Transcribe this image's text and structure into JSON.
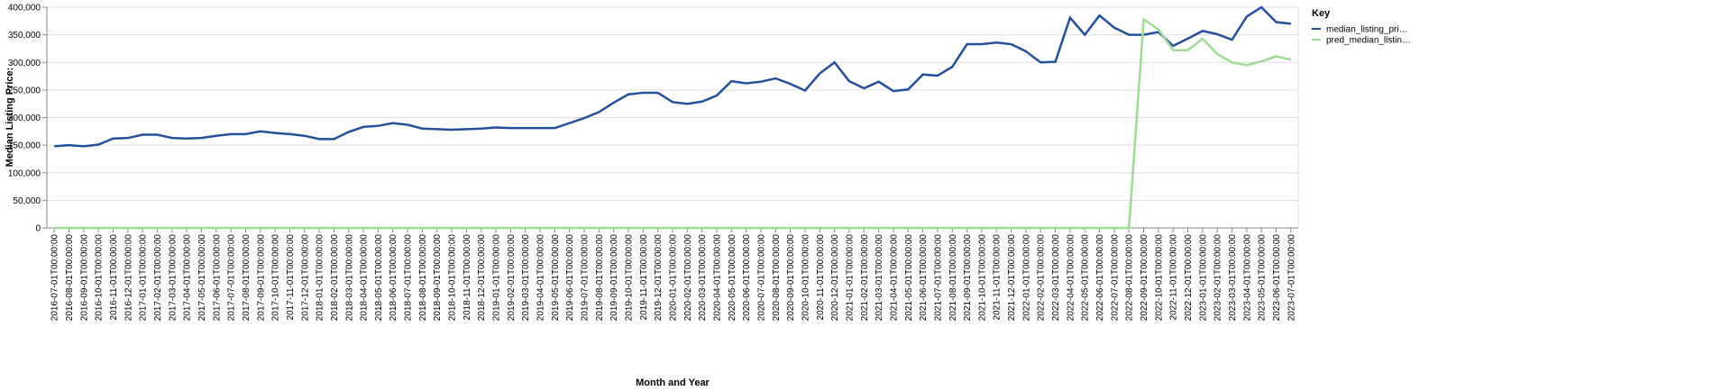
{
  "chart_data": {
    "type": "line",
    "y_label": "Median Listing Price:",
    "x_label": "Month and Year",
    "legend_title": "Key",
    "legend_position": "right",
    "grid": true,
    "categories": [
      "2016-07-01T00:00:00",
      "2016-08-01T00:00:00",
      "2016-09-01T00:00:00",
      "2016-10-01T00:00:00",
      "2016-11-01T00:00:00",
      "2016-12-01T00:00:00",
      "2017-01-01T00:00:00",
      "2017-02-01T00:00:00",
      "2017-03-01T00:00:00",
      "2017-04-01T00:00:00",
      "2017-05-01T00:00:00",
      "2017-06-01T00:00:00",
      "2017-07-01T00:00:00",
      "2017-08-01T00:00:00",
      "2017-09-01T00:00:00",
      "2017-10-01T00:00:00",
      "2017-11-01T00:00:00",
      "2017-12-01T00:00:00",
      "2018-01-01T00:00:00",
      "2018-02-01T00:00:00",
      "2018-03-01T00:00:00",
      "2018-04-01T00:00:00",
      "2018-05-01T00:00:00",
      "2018-06-01T00:00:00",
      "2018-07-01T00:00:00",
      "2018-08-01T00:00:00",
      "2018-09-01T00:00:00",
      "2018-10-01T00:00:00",
      "2018-11-01T00:00:00",
      "2018-12-01T00:00:00",
      "2019-01-01T00:00:00",
      "2019-02-01T00:00:00",
      "2019-03-01T00:00:00",
      "2019-04-01T00:00:00",
      "2019-05-01T00:00:00",
      "2019-06-01T00:00:00",
      "2019-07-01T00:00:00",
      "2019-08-01T00:00:00",
      "2019-09-01T00:00:00",
      "2019-10-01T00:00:00",
      "2019-11-01T00:00:00",
      "2019-12-01T00:00:00",
      "2020-01-01T00:00:00",
      "2020-02-01T00:00:00",
      "2020-03-01T00:00:00",
      "2020-04-01T00:00:00",
      "2020-05-01T00:00:00",
      "2020-06-01T00:00:00",
      "2020-07-01T00:00:00",
      "2020-08-01T00:00:00",
      "2020-09-01T00:00:00",
      "2020-10-01T00:00:00",
      "2020-11-01T00:00:00",
      "2020-12-01T00:00:00",
      "2021-01-01T00:00:00",
      "2021-02-01T00:00:00",
      "2021-03-01T00:00:00",
      "2021-04-01T00:00:00",
      "2021-05-01T00:00:00",
      "2021-06-01T00:00:00",
      "2021-07-01T00:00:00",
      "2021-08-01T00:00:00",
      "2021-09-01T00:00:00",
      "2021-10-01T00:00:00",
      "2021-11-01T00:00:00",
      "2021-12-01T00:00:00",
      "2022-01-01T00:00:00",
      "2022-02-01T00:00:00",
      "2022-03-01T00:00:00",
      "2022-04-01T00:00:00",
      "2022-05-01T00:00:00",
      "2022-06-01T00:00:00",
      "2022-07-01T00:00:00",
      "2022-08-01T00:00:00",
      "2022-09-01T00:00:00",
      "2022-10-01T00:00:00",
      "2022-11-01T00:00:00",
      "2022-12-01T00:00:00",
      "2023-01-01T00:00:00",
      "2023-02-01T00:00:00",
      "2023-03-01T00:00:00",
      "2023-04-01T00:00:00",
      "2023-05-01T00:00:00",
      "2023-06-01T00:00:00",
      "2023-07-01T00:00:00"
    ],
    "series": [
      {
        "name": "median_listing_pri…",
        "color": "#24509a",
        "values": [
          148000,
          150000,
          148000,
          151000,
          162000,
          163000,
          169000,
          169000,
          163000,
          162000,
          163000,
          167000,
          170000,
          170000,
          175000,
          172000,
          170000,
          167000,
          161000,
          161000,
          174000,
          183000,
          185000,
          190000,
          187000,
          180000,
          179000,
          178000,
          179000,
          180000,
          182000,
          181000,
          181000,
          181000,
          181000,
          190000,
          199000,
          210000,
          227000,
          242000,
          245000,
          245000,
          228000,
          225000,
          229000,
          240000,
          266000,
          262000,
          265000,
          271000,
          261000,
          249000,
          280000,
          300000,
          266000,
          253000,
          265000,
          248000,
          251000,
          278000,
          276000,
          292000,
          333000,
          333000,
          336000,
          333000,
          320000,
          300000,
          301000,
          381000,
          350000,
          385000,
          363000,
          350000,
          350000,
          355000,
          330000,
          343000,
          357000,
          351000,
          341000,
          383000,
          400000,
          373000,
          370000
        ]
      },
      {
        "name": "pred_median_listin…",
        "color": "#9edc94",
        "values": [
          0,
          0,
          0,
          0,
          0,
          0,
          0,
          0,
          0,
          0,
          0,
          0,
          0,
          0,
          0,
          0,
          0,
          0,
          0,
          0,
          0,
          0,
          0,
          0,
          0,
          0,
          0,
          0,
          0,
          0,
          0,
          0,
          0,
          0,
          0,
          0,
          0,
          0,
          0,
          0,
          0,
          0,
          0,
          0,
          0,
          0,
          0,
          0,
          0,
          0,
          0,
          0,
          0,
          0,
          0,
          0,
          0,
          0,
          0,
          0,
          0,
          0,
          0,
          0,
          0,
          0,
          0,
          0,
          0,
          0,
          0,
          0,
          0,
          0,
          378000,
          360000,
          322000,
          322000,
          343000,
          315000,
          300000,
          295000,
          302000,
          311000,
          305000
        ]
      }
    ],
    "ylim": [
      0,
      400000
    ],
    "yticks": [
      0,
      {
        "value": 50000,
        "label": "50,000"
      },
      {
        "value": 100000,
        "label": "100,000"
      },
      {
        "value": 150000,
        "label": "150,000"
      },
      {
        "value": 200000,
        "label": "200,000"
      },
      {
        "value": 250000,
        "label": "250,000"
      },
      {
        "value": 300000,
        "label": "300,000"
      },
      {
        "value": 350000,
        "label": "350,000"
      },
      {
        "value": 400000,
        "label": "400,000"
      }
    ]
  }
}
